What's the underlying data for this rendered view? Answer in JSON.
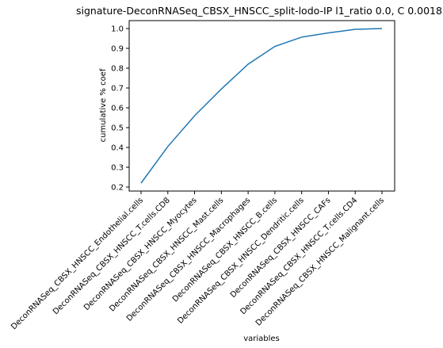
{
  "chart_data": {
    "type": "line",
    "title": "signature-DeconRNASeq_CBSX_HNSCC_split-lodo-IP l1_ratio 0.0, C 0.0018",
    "xlabel": "variables",
    "ylabel": "cumulative % coef",
    "categories": [
      "DeconRNASeq_CBSX_HNSCC_Endothelial.cells",
      "DeconRNASeq_CBSX_HNSCC_T.cells.CD8",
      "DeconRNASeq_CBSX_HNSCC_Myocytes",
      "DeconRNASeq_CBSX_HNSCC_Mast.cells",
      "DeconRNASeq_CBSX_HNSCC_Macrophages",
      "DeconRNASeq_CBSX_HNSCC_B.cells",
      "DeconRNASeq_CBSX_HNSCC_Dendritic.cells",
      "DeconRNASeq_CBSX_HNSCC_CAFs",
      "DeconRNASeq_CBSX_HNSCC_T.cells.CD4",
      "DeconRNASeq_CBSX_HNSCC_Malignant.cells"
    ],
    "values": [
      0.22,
      0.405,
      0.56,
      0.695,
      0.82,
      0.91,
      0.957,
      0.978,
      0.996,
      1.0
    ],
    "ylim": [
      0.18,
      1.04
    ],
    "yticks": [
      "0.2",
      "0.3",
      "0.4",
      "0.5",
      "0.6",
      "0.7",
      "0.8",
      "0.9",
      "1.0"
    ],
    "ytick_values": [
      0.2,
      0.3,
      0.4,
      0.5,
      0.6,
      0.7,
      0.8,
      0.9,
      1.0
    ],
    "grid": false,
    "line_color": "#1f77b4"
  }
}
